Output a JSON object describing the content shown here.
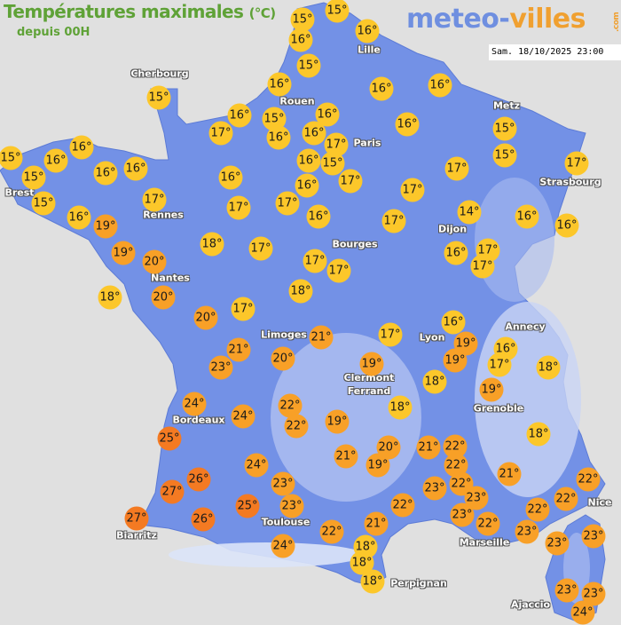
{
  "header": {
    "title": "Températures maximales",
    "unit": "(°C)",
    "subtitle": "depuis 00H",
    "logo_part1": "meteo-",
    "logo_part2": "villes",
    "logo_com": ".com",
    "timestamp": "Sam. 18/10/2025 23:00"
  },
  "colors": {
    "background": "#e0e0e0",
    "land": "#7391e6",
    "relief": "#b9c8f2",
    "cool": "#fcc72a",
    "warm": "#f8a027",
    "hot": "#f47a22",
    "title": "#5fa237"
  },
  "cities": [
    "Cherbourg",
    "Lille",
    "Rouen",
    "Paris",
    "Metz",
    "Strasbourg",
    "Brest",
    "Rennes",
    "Dijon",
    "Nantes",
    "Bourges",
    "Limoges",
    "Lyon",
    "Annecy",
    "Clermont\nFerrand",
    "Grenoble",
    "Bordeaux",
    "Biarritz",
    "Toulouse",
    "Marseille",
    "Nice",
    "Perpignan",
    "Ajaccio"
  ],
  "temperatures": [
    15,
    15,
    16,
    16,
    15,
    16,
    16,
    16,
    16,
    15,
    16,
    16,
    16,
    17,
    16,
    15,
    17,
    16,
    17,
    15,
    16,
    15,
    15,
    16,
    16,
    16,
    15,
    16,
    19,
    17,
    16,
    17,
    17,
    16,
    16,
    17,
    17,
    17,
    15,
    15,
    17,
    14,
    16,
    16,
    16,
    17,
    17,
    18,
    17,
    17,
    17,
    19,
    20,
    18,
    20,
    18,
    17,
    20,
    21,
    23,
    20,
    21,
    17,
    16,
    19,
    19,
    16,
    17,
    18,
    19,
    18,
    19,
    18,
    18,
    24,
    24,
    22,
    22,
    19,
    25,
    24,
    23,
    21,
    20,
    19,
    21,
    22,
    22,
    21,
    26,
    27,
    25,
    23,
    22,
    23,
    23,
    23,
    22,
    22,
    22,
    22,
    22,
    22,
    23,
    23,
    23,
    27,
    26,
    24,
    21,
    18,
    18,
    18,
    23,
    23,
    24
  ],
  "unit_suffix": "°"
}
